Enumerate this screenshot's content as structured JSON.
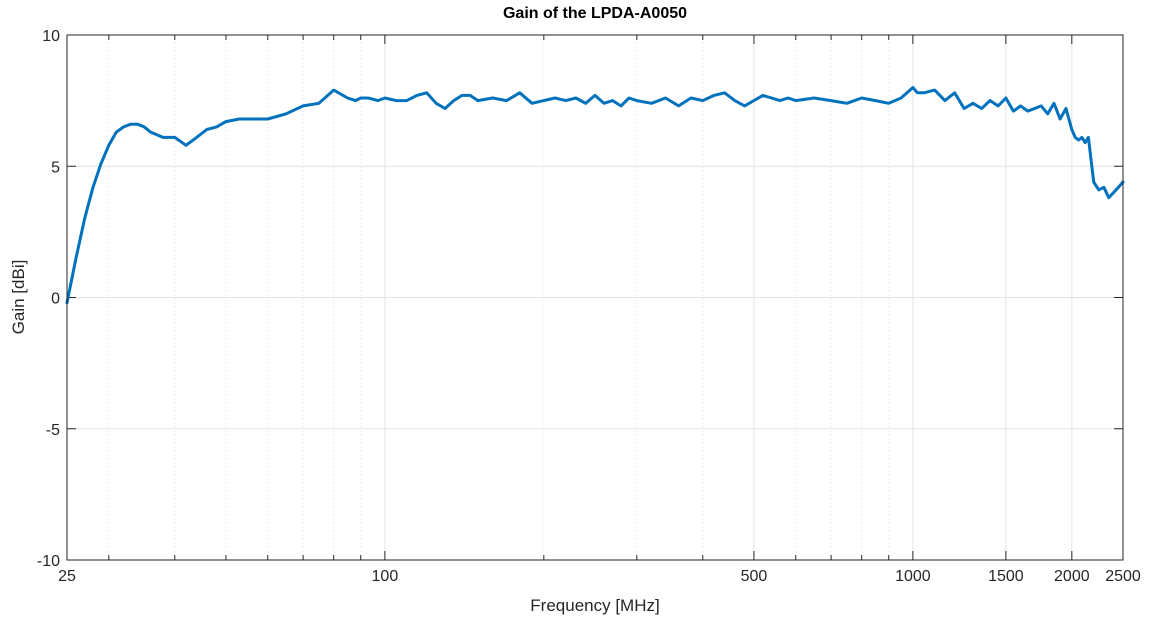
{
  "chart_data": {
    "type": "line",
    "title": "Gain of the LPDA-A0050",
    "xlabel": "Frequency [MHz]",
    "ylabel": "Gain [dBi]",
    "xscale": "log",
    "xlim": [
      25,
      2500
    ],
    "ylim": [
      -10,
      10
    ],
    "grid": true,
    "x_ticks": [
      25,
      100,
      500,
      1000,
      1500,
      2000,
      2500
    ],
    "x_tick_labels": [
      "25",
      "100",
      "500",
      "1000",
      "1500",
      "2000",
      "2500"
    ],
    "y_ticks": [
      -10,
      -5,
      0,
      5,
      10
    ],
    "y_tick_labels": [
      "-10",
      "-5",
      "0",
      "5",
      "10"
    ],
    "series": [
      {
        "color": "#0072bd",
        "x": [
          25,
          26,
          27,
          28,
          29,
          30,
          31,
          32,
          33,
          34,
          35,
          36,
          38,
          40,
          42,
          44,
          46,
          48,
          50,
          53,
          56,
          60,
          65,
          70,
          75,
          80,
          85,
          88,
          90,
          93,
          97,
          100,
          105,
          110,
          115,
          120,
          125,
          130,
          135,
          140,
          145,
          150,
          160,
          170,
          180,
          190,
          200,
          210,
          220,
          230,
          240,
          250,
          260,
          270,
          280,
          290,
          300,
          320,
          340,
          360,
          380,
          400,
          420,
          440,
          460,
          480,
          500,
          520,
          540,
          560,
          580,
          600,
          650,
          700,
          750,
          800,
          850,
          900,
          950,
          1000,
          1020,
          1050,
          1100,
          1150,
          1200,
          1250,
          1300,
          1350,
          1400,
          1450,
          1500,
          1550,
          1600,
          1650,
          1700,
          1750,
          1800,
          1850,
          1900,
          1950,
          2000,
          2030,
          2060,
          2090,
          2120,
          2150,
          2200,
          2250,
          2300,
          2350,
          2400,
          2450,
          2500
        ],
        "y": [
          -0.2,
          1.5,
          3.0,
          4.2,
          5.1,
          5.8,
          6.3,
          6.5,
          6.6,
          6.6,
          6.5,
          6.3,
          6.1,
          6.1,
          5.8,
          6.1,
          6.4,
          6.5,
          6.7,
          6.8,
          6.8,
          6.8,
          7.0,
          7.3,
          7.4,
          7.9,
          7.6,
          7.5,
          7.6,
          7.6,
          7.5,
          7.6,
          7.5,
          7.5,
          7.7,
          7.8,
          7.4,
          7.2,
          7.5,
          7.7,
          7.7,
          7.5,
          7.6,
          7.5,
          7.8,
          7.4,
          7.5,
          7.6,
          7.5,
          7.6,
          7.4,
          7.7,
          7.4,
          7.5,
          7.3,
          7.6,
          7.5,
          7.4,
          7.6,
          7.3,
          7.6,
          7.5,
          7.7,
          7.8,
          7.5,
          7.3,
          7.5,
          7.7,
          7.6,
          7.5,
          7.6,
          7.5,
          7.6,
          7.5,
          7.4,
          7.6,
          7.5,
          7.4,
          7.6,
          8.0,
          7.8,
          7.8,
          7.9,
          7.5,
          7.8,
          7.2,
          7.4,
          7.2,
          7.5,
          7.3,
          7.6,
          7.1,
          7.3,
          7.1,
          7.2,
          7.3,
          7.0,
          7.4,
          6.8,
          7.2,
          6.4,
          6.1,
          6.0,
          6.1,
          5.9,
          6.1,
          4.4,
          4.1,
          4.2,
          3.8,
          4.0,
          4.2,
          4.4
        ]
      }
    ]
  }
}
